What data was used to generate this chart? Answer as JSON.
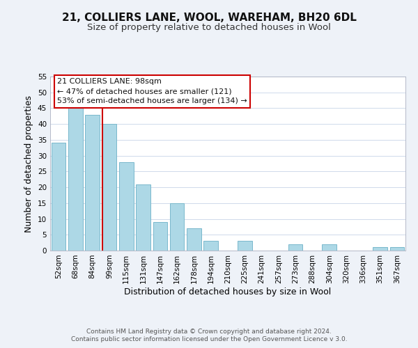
{
  "title": "21, COLLIERS LANE, WOOL, WAREHAM, BH20 6DL",
  "subtitle": "Size of property relative to detached houses in Wool",
  "xlabel": "Distribution of detached houses by size in Wool",
  "ylabel": "Number of detached properties",
  "bin_labels": [
    "52sqm",
    "68sqm",
    "84sqm",
    "99sqm",
    "115sqm",
    "131sqm",
    "147sqm",
    "162sqm",
    "178sqm",
    "194sqm",
    "210sqm",
    "225sqm",
    "241sqm",
    "257sqm",
    "273sqm",
    "288sqm",
    "304sqm",
    "320sqm",
    "336sqm",
    "351sqm",
    "367sqm"
  ],
  "bar_values": [
    34,
    46,
    43,
    40,
    28,
    21,
    9,
    15,
    7,
    3,
    0,
    3,
    0,
    0,
    2,
    0,
    2,
    0,
    0,
    1,
    1
  ],
  "bar_color": "#add8e6",
  "bar_edge_color": "#7ab8cc",
  "vline_color": "#cc0000",
  "ylim": [
    0,
    55
  ],
  "yticks": [
    0,
    5,
    10,
    15,
    20,
    25,
    30,
    35,
    40,
    45,
    50,
    55
  ],
  "annotation_line1": "21 COLLIERS LANE: 98sqm",
  "annotation_line2": "← 47% of detached houses are smaller (121)",
  "annotation_line3": "53% of semi-detached houses are larger (134) →",
  "annotation_box_color": "#ffffff",
  "annotation_box_edge": "#cc0000",
  "footer_line1": "Contains HM Land Registry data © Crown copyright and database right 2024.",
  "footer_line2": "Contains public sector information licensed under the Open Government Licence v 3.0.",
  "background_color": "#eef2f8",
  "plot_background": "#ffffff",
  "grid_color": "#c8d4e8",
  "title_fontsize": 11,
  "subtitle_fontsize": 9.5,
  "axis_label_fontsize": 9,
  "tick_fontsize": 7.5,
  "annotation_fontsize": 8,
  "footer_fontsize": 6.5
}
